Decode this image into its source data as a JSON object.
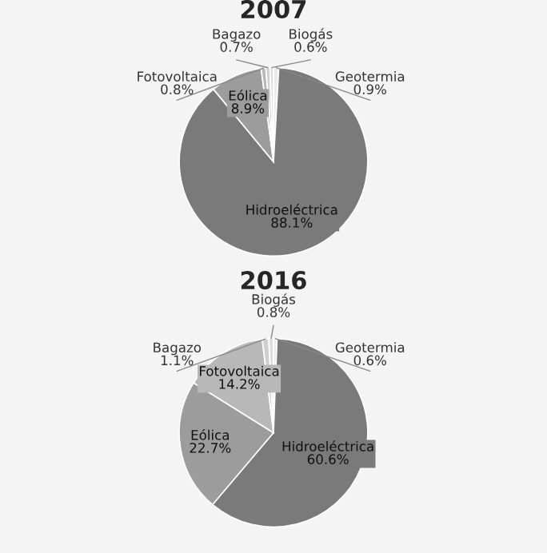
{
  "chart_data": [
    {
      "type": "pie",
      "title": "2007",
      "categories": [
        "Geotermia",
        "Hidroeléctrica",
        "Eólica",
        "Fotovoltaica",
        "Bagazo",
        "Biogás"
      ],
      "values": [
        0.9,
        88.1,
        8.9,
        0.8,
        0.7,
        0.6
      ],
      "value_labels": [
        "0.9%",
        "88.1%",
        "8.9%",
        "0.8%",
        "0.7%",
        "0.6%"
      ],
      "colors": [
        "#ebebeb",
        "#7a7a7a",
        "#9c9c9c",
        "#b8b8b8",
        "#cfcfcf",
        "#dedede"
      ]
    },
    {
      "type": "pie",
      "title": "2016",
      "categories": [
        "Geotermia",
        "Hidroeléctrica",
        "Eólica",
        "Fotovoltaica",
        "Bagazo",
        "Biogás"
      ],
      "values": [
        0.6,
        60.6,
        22.7,
        14.2,
        1.1,
        0.8
      ],
      "value_labels": [
        "0.6%",
        "60.6%",
        "22.7%",
        "14.2%",
        "1.1%",
        "0.8%"
      ],
      "colors": [
        "#ebebeb",
        "#7a7a7a",
        "#9c9c9c",
        "#b8b8b8",
        "#cfcfcf",
        "#dedede"
      ]
    }
  ]
}
